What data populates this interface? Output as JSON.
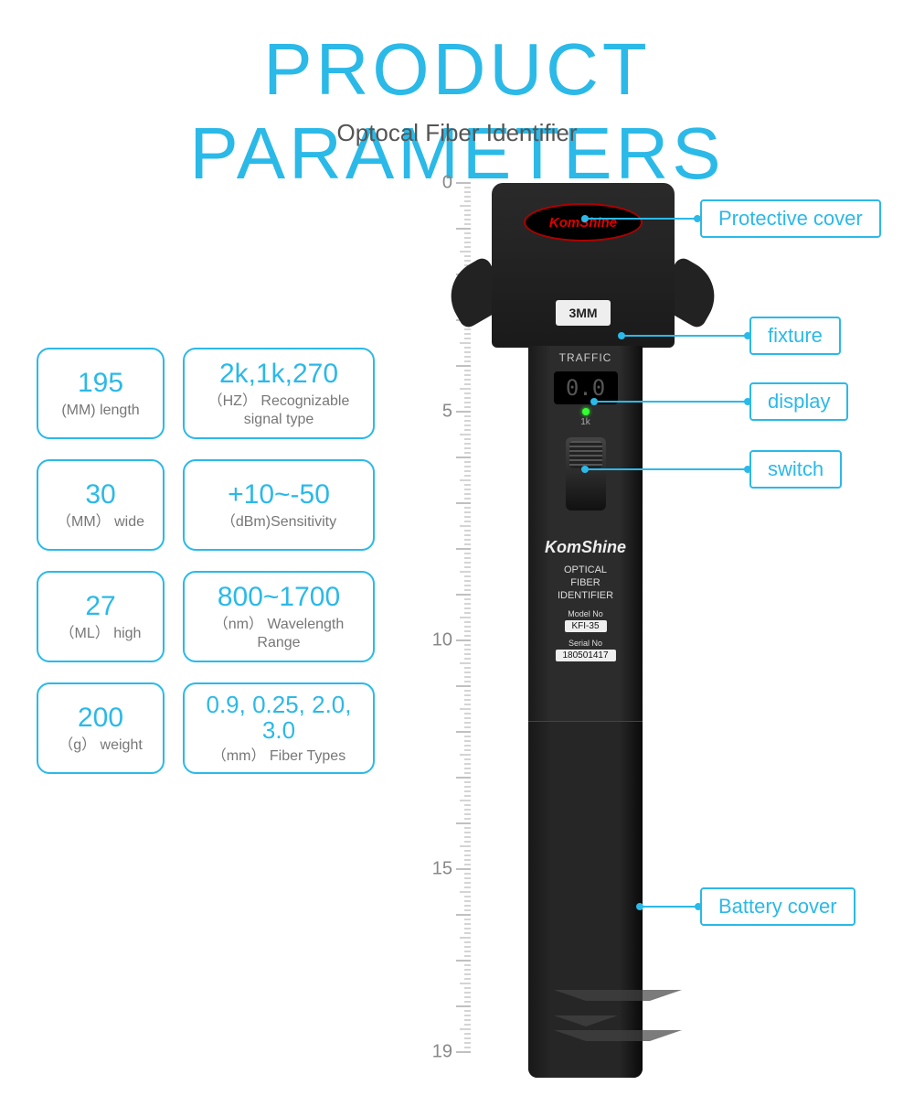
{
  "title": "PRODUCT PARAMETERS",
  "subtitle": "Optocal Fiber Identifier",
  "colors": {
    "accent": "#2bb9e8",
    "label": "#777777",
    "title": "#2bb9e8",
    "subtitle": "#555555",
    "ruler": "#888888",
    "deviceBody": "#2a2a2a"
  },
  "params": {
    "col1": [
      {
        "value": "195",
        "label": "(MM) length"
      },
      {
        "value": "30",
        "label": "（MM） wide"
      },
      {
        "value": "27",
        "label": "（ML） high"
      },
      {
        "value": "200",
        "label": "（g） weight"
      }
    ],
    "col2": [
      {
        "value": "2k,1k,270",
        "label": "（HZ） Recognizable signal type"
      },
      {
        "value": "+10~-50",
        "label": "（dBm)Sensitivity"
      },
      {
        "value": "800~1700",
        "label": "（nm） Wavelength Range"
      },
      {
        "value": "0.9, 0.25, 2.0, 3.0",
        "label": "（mm） Fiber Types",
        "small": true
      }
    ]
  },
  "ruler": {
    "ticks": [
      "0",
      "5",
      "10",
      "15",
      "19"
    ],
    "maxCm": 19,
    "pxPerCm": 50
  },
  "device": {
    "brandBadge": "KomShine",
    "headLabel": "3MM",
    "traffic": "TRAFFIC",
    "digits": "0.0",
    "ledLabel": "1k",
    "brand": "KomShine",
    "line1": "OPTICAL",
    "line2": "FIBER",
    "line3": "IDENTIFIER",
    "modelLabel": "Model No",
    "model": "KFI-35",
    "serialLabel": "Serial No",
    "serial": "180501417"
  },
  "callouts": [
    {
      "label": "Protective cover",
      "lineTop": 238,
      "lineLeft": 640,
      "lineWidth": 125,
      "boxTop": 218,
      "boxLeft": 766
    },
    {
      "label": "fixture",
      "lineTop": 366,
      "lineLeft": 680,
      "lineWidth": 140,
      "boxTop": 346,
      "boxLeft": 820
    },
    {
      "label": "display",
      "lineTop": 438,
      "lineLeft": 650,
      "lineWidth": 170,
      "boxTop": 418,
      "boxLeft": 820
    },
    {
      "label": "switch",
      "lineTop": 512,
      "lineLeft": 640,
      "lineWidth": 180,
      "boxTop": 492,
      "boxLeft": 820
    },
    {
      "label": "Battery cover",
      "lineTop": 990,
      "lineLeft": 700,
      "lineWidth": 66,
      "boxTop": 970,
      "boxLeft": 766
    }
  ]
}
